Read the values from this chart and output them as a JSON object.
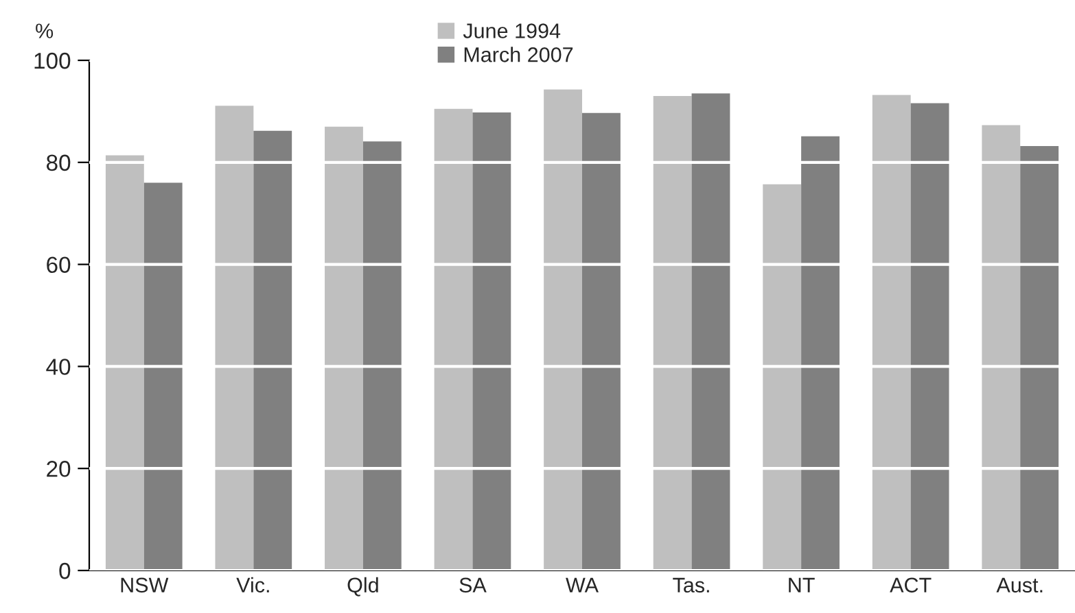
{
  "chart_data": {
    "type": "bar",
    "ylabel": "%",
    "categories": [
      "NSW",
      "Vic.",
      "Qld",
      "SA",
      "WA",
      "Tas.",
      "NT",
      "ACT",
      "Aust."
    ],
    "series": [
      {
        "name": "June 1994",
        "color": "#bfbfbf",
        "values": [
          81.4,
          91.1,
          87.0,
          90.5,
          94.3,
          93.0,
          75.7,
          93.2,
          87.3
        ]
      },
      {
        "name": "March 2007",
        "color": "#808080",
        "values": [
          76.0,
          86.2,
          84.1,
          89.8,
          89.7,
          93.5,
          85.1,
          91.6,
          83.2
        ]
      }
    ],
    "ylim": [
      0,
      100
    ],
    "yticks": [
      0,
      20,
      40,
      60,
      80,
      100
    ],
    "grid": "y",
    "legend": "top"
  }
}
